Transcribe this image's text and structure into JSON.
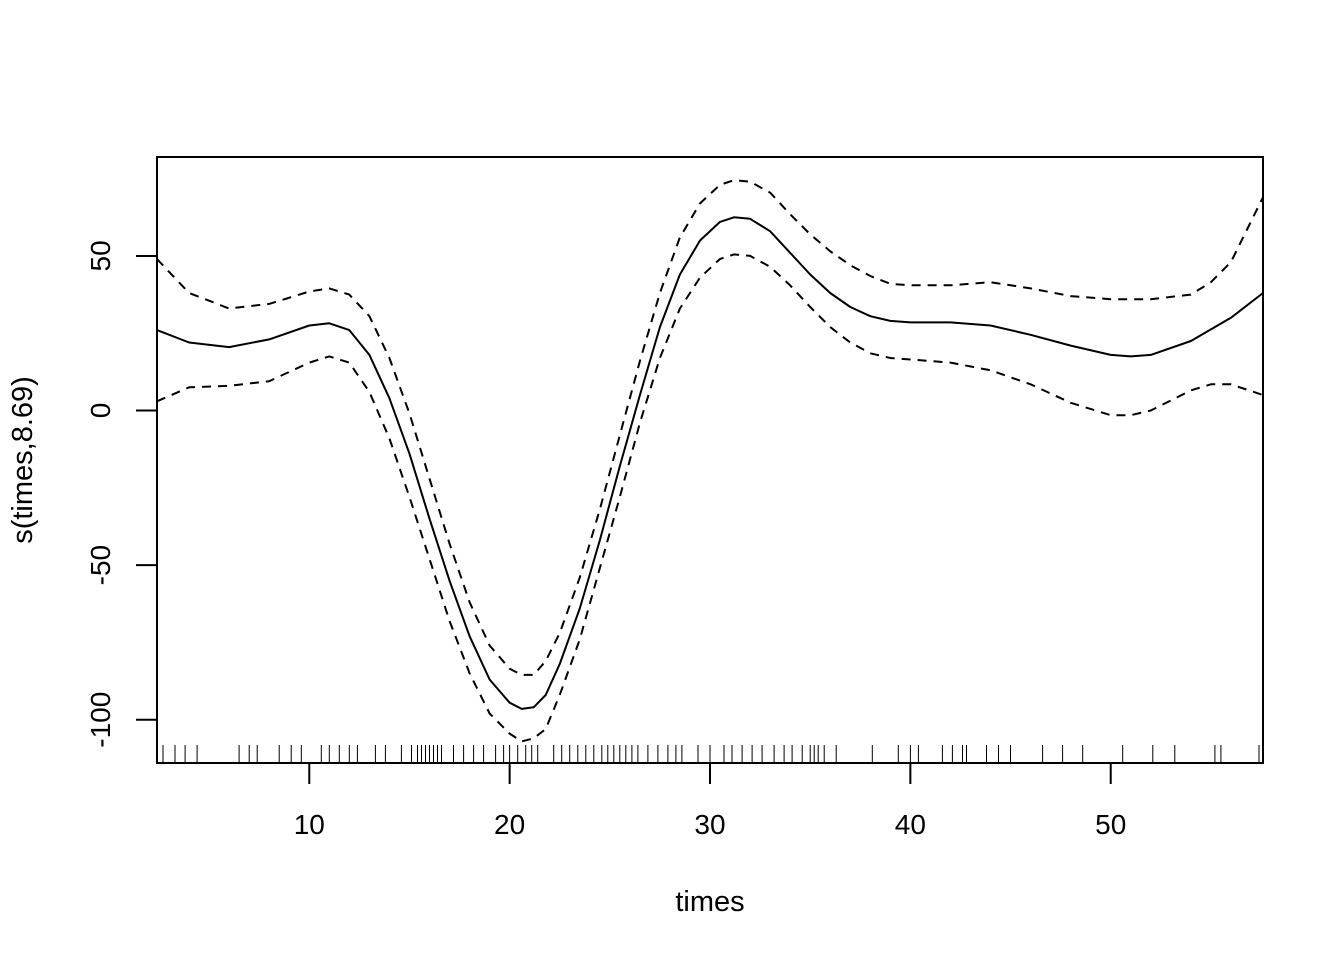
{
  "chart_data": {
    "type": "line",
    "title": "",
    "xlabel": "times",
    "ylabel": "s(times,8.69)",
    "xlim": [
      2.4,
      57.6
    ],
    "ylim": [
      -114,
      82
    ],
    "x_ticks": [
      10,
      20,
      30,
      40,
      50
    ],
    "y_ticks": [
      -100,
      -50,
      0,
      50
    ],
    "x_tick_labels": [
      "10",
      "20",
      "30",
      "40",
      "50"
    ],
    "y_tick_labels": [
      "-100",
      "-50",
      "0",
      "50"
    ],
    "grid": false,
    "legend": "none",
    "series": [
      {
        "role": "fit",
        "style": "solid",
        "x": [
          2.4,
          4,
          6,
          8,
          10,
          11,
          12,
          13,
          14,
          15,
          16,
          17,
          18,
          19,
          20,
          20.6,
          21.2,
          21.8,
          22.5,
          23.5,
          24.5,
          25.5,
          26.5,
          27.5,
          28.5,
          29.5,
          30.5,
          31.2,
          32,
          33,
          34,
          35,
          36,
          37,
          38,
          39,
          40,
          42,
          44,
          46,
          48,
          50,
          51,
          52,
          54,
          56,
          57.6
        ],
        "y": [
          26,
          22,
          20.5,
          23,
          27.5,
          28.2,
          26,
          18,
          4,
          -14,
          -35,
          -55,
          -73,
          -87,
          -94.5,
          -96.5,
          -96,
          -92,
          -82,
          -64,
          -42,
          -18,
          5,
          27,
          44,
          55,
          61,
          62.5,
          62,
          58,
          51,
          44,
          38,
          33.5,
          30.5,
          29,
          28.5,
          28.5,
          27.5,
          24.5,
          21,
          18,
          17.5,
          18,
          22.5,
          30,
          38
        ]
      },
      {
        "role": "upper",
        "style": "dashed",
        "x": [
          2.4,
          4,
          6,
          8,
          10,
          11,
          12,
          13,
          14,
          15,
          16,
          17,
          18,
          19,
          20,
          20.6,
          21.2,
          21.8,
          22.5,
          23.5,
          24.5,
          25.5,
          26.5,
          27.5,
          28.5,
          29.5,
          30.5,
          31.2,
          32,
          33,
          34,
          35,
          36,
          37,
          38,
          39,
          40,
          42,
          44,
          46,
          48,
          50,
          51,
          52,
          54,
          55,
          56,
          57.6
        ],
        "y": [
          49,
          38,
          33,
          34.5,
          38.5,
          39.5,
          37.5,
          30.5,
          17,
          -1,
          -22,
          -43,
          -62,
          -76,
          -83.5,
          -85.5,
          -85.5,
          -81,
          -72,
          -54,
          -32,
          -8,
          16,
          38,
          56,
          67,
          73,
          74.5,
          74,
          70.5,
          63.5,
          57,
          51.5,
          47,
          43.5,
          41,
          40.5,
          40.5,
          41.5,
          39.5,
          37,
          36,
          36,
          36,
          37.5,
          41.5,
          48,
          69
        ]
      },
      {
        "role": "lower",
        "style": "dashed",
        "x": [
          2.4,
          4,
          6,
          8,
          10,
          11,
          12,
          13,
          14,
          15,
          16,
          17,
          18,
          19,
          20,
          20.6,
          21.2,
          21.8,
          22.5,
          23.5,
          24.5,
          25.5,
          26.5,
          27.5,
          28.5,
          29.5,
          30.5,
          31.2,
          32,
          33,
          34,
          35,
          36,
          37,
          38,
          39,
          40,
          42,
          44,
          46,
          48,
          50,
          51,
          52,
          54,
          55,
          56,
          57.6
        ],
        "y": [
          3,
          7.5,
          8,
          9.5,
          15.5,
          17.5,
          15.5,
          6,
          -9,
          -28,
          -48,
          -68,
          -85,
          -98,
          -104.5,
          -107,
          -106,
          -103,
          -92,
          -74,
          -51,
          -28,
          -4,
          17,
          33,
          43,
          49,
          50.5,
          50,
          46.5,
          40.5,
          33.5,
          27,
          22,
          18.5,
          17,
          16.5,
          15.5,
          13,
          8.5,
          2.5,
          -1.5,
          -1.5,
          0,
          6.5,
          8.5,
          8.5,
          5
        ]
      }
    ],
    "rug_x": [
      2.7,
      3.3,
      3.8,
      4.4,
      6.5,
      7,
      7.4,
      8.5,
      9.1,
      9.6,
      10.6,
      11,
      11.5,
      12,
      12.4,
      13.3,
      13.8,
      14.6,
      15.1,
      15.4,
      15.6,
      15.8,
      16,
      16.2,
      16.4,
      16.6,
      17.2,
      17.7,
      18.2,
      18.7,
      19.3,
      19.7,
      20,
      20.4,
      20.8,
      21.1,
      21.4,
      22.2,
      22.6,
      23,
      23.4,
      23.8,
      24.2,
      24.6,
      24.9,
      25.2,
      25.5,
      25.8,
      26.1,
      26.4,
      26.9,
      27.4,
      27.9,
      28.3,
      28.6,
      29.4,
      30,
      30.7,
      31.1,
      31.6,
      32.1,
      32.6,
      33.2,
      33.7,
      34.1,
      34.6,
      35,
      35.2,
      35.4,
      35.7,
      36.3,
      38.1,
      39.4,
      40,
      40.4,
      41.6,
      42.1,
      42.6,
      42.8,
      43.8,
      44.4,
      45,
      46.6,
      47.6,
      48.6,
      50.6,
      52.1,
      53.2,
      55.2,
      55.5,
      57.4
    ]
  }
}
